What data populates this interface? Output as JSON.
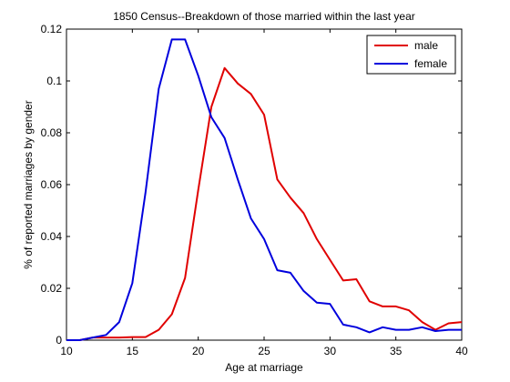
{
  "chart_data": {
    "type": "line",
    "title": "1850 Census--Breakdown of those married within the last year",
    "xlabel": "Age at marriage",
    "ylabel": "% of reported marriages by gender",
    "xlim": [
      10,
      40
    ],
    "ylim": [
      0,
      0.12
    ],
    "xticks": [
      10,
      15,
      20,
      25,
      30,
      35,
      40
    ],
    "yticks": [
      0,
      0.02,
      0.04,
      0.06,
      0.08,
      0.1,
      0.12
    ],
    "xtick_labels": [
      "10",
      "15",
      "20",
      "25",
      "30",
      "35",
      "40"
    ],
    "ytick_labels": [
      "0",
      "0.02",
      "0.04",
      "0.06",
      "0.08",
      "0.1",
      "0.12"
    ],
    "grid": false,
    "legend_position": "top-right",
    "series": [
      {
        "name": "male",
        "color": "#e00000",
        "x": [
          10,
          11,
          12,
          13,
          14,
          15,
          16,
          17,
          18,
          19,
          20,
          21,
          22,
          23,
          24,
          25,
          26,
          27,
          28,
          29,
          30,
          31,
          32,
          33,
          34,
          35,
          36,
          37,
          38,
          39,
          40
        ],
        "values": [
          0,
          0,
          0.001,
          0.001,
          0.001,
          0.0012,
          0.0012,
          0.004,
          0.01,
          0.024,
          0.058,
          0.09,
          0.105,
          0.099,
          0.095,
          0.087,
          0.062,
          0.055,
          0.049,
          0.039,
          0.031,
          0.023,
          0.0235,
          0.015,
          0.013,
          0.013,
          0.0115,
          0.007,
          0.004,
          0.0065,
          0.007
        ]
      },
      {
        "name": "female",
        "color": "#0000dd",
        "x": [
          10,
          11,
          12,
          13,
          14,
          15,
          16,
          17,
          18,
          19,
          20,
          21,
          22,
          23,
          24,
          25,
          26,
          27,
          28,
          29,
          30,
          31,
          32,
          33,
          34,
          35,
          36,
          37,
          38,
          39,
          40
        ],
        "values": [
          0,
          0,
          0.001,
          0.002,
          0.007,
          0.022,
          0.057,
          0.097,
          0.116,
          0.116,
          0.102,
          0.086,
          0.078,
          0.062,
          0.047,
          0.039,
          0.027,
          0.026,
          0.019,
          0.0145,
          0.014,
          0.006,
          0.005,
          0.003,
          0.005,
          0.004,
          0.004,
          0.005,
          0.0035,
          0.004,
          0.004
        ]
      }
    ]
  }
}
